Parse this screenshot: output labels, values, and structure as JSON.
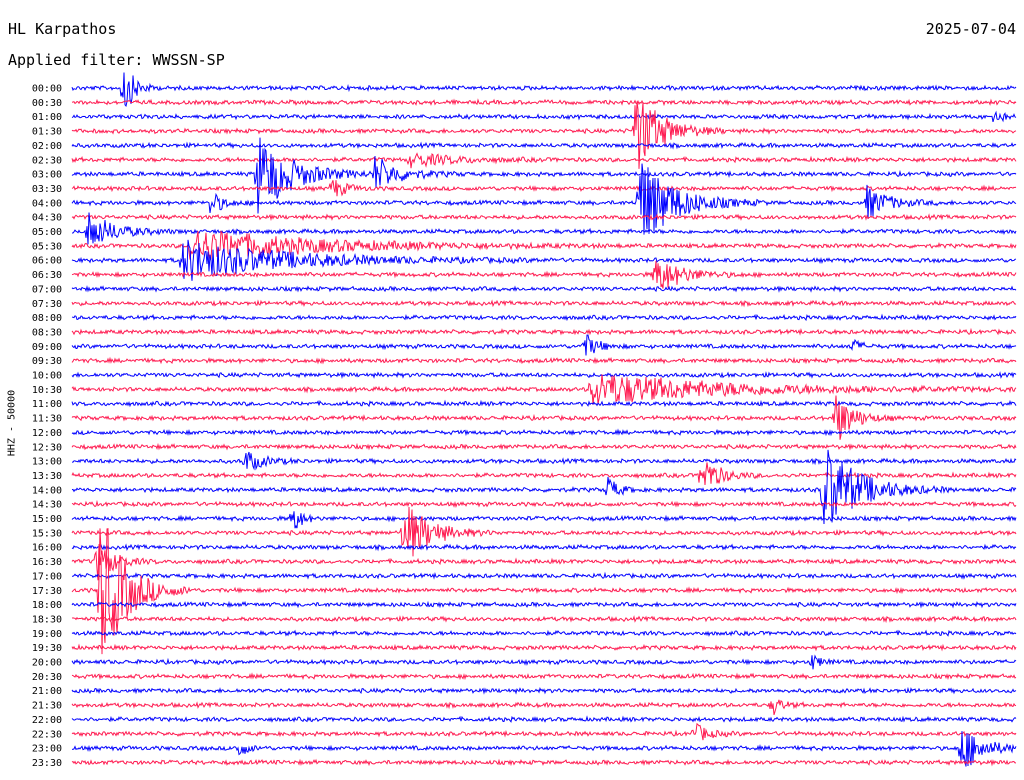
{
  "header": {
    "station": "HL Karpathos",
    "filter_label": "Applied filter: WWSSN-SP",
    "date": "2025-07-04"
  },
  "colors": {
    "odd_line": "#0000ff",
    "even_line": "#ff1a50"
  },
  "chart_data": {
    "type": "line",
    "title": "HL Karpathos",
    "ylabel": "HHZ - 50000",
    "row_labels": [
      "00:00",
      "00:30",
      "01:00",
      "01:30",
      "02:00",
      "02:30",
      "03:00",
      "03:30",
      "04:00",
      "04:30",
      "05:00",
      "05:30",
      "06:00",
      "06:30",
      "07:00",
      "07:30",
      "08:00",
      "08:30",
      "09:00",
      "09:30",
      "10:00",
      "10:30",
      "11:00",
      "11:30",
      "12:00",
      "12:30",
      "13:00",
      "13:30",
      "14:00",
      "14:30",
      "15:00",
      "15:30",
      "16:00",
      "16:30",
      "17:00",
      "17:30",
      "18:00",
      "18:30",
      "19:00",
      "19:30",
      "20:00",
      "20:30",
      "21:00",
      "21:30",
      "22:00",
      "22:30",
      "23:00",
      "23:30"
    ],
    "row_colors": [
      "blue",
      "red"
    ],
    "events": [
      {
        "row": 0,
        "minute": 6.5,
        "amp": 2.2,
        "dur": 1.2
      },
      {
        "row": 6,
        "minute": 23.5,
        "amp": 3.0,
        "dur": 4
      },
      {
        "row": 6,
        "minute": 38.5,
        "amp": 1.2,
        "dur": 3
      },
      {
        "row": 5,
        "minute": 43,
        "amp": 0.5,
        "dur": 5
      },
      {
        "row": 7,
        "minute": 33,
        "amp": 0.8,
        "dur": 1.5
      },
      {
        "row": 8,
        "minute": 17.5,
        "amp": 0.9,
        "dur": 1.5
      },
      {
        "row": 8,
        "minute": 72,
        "amp": 3.5,
        "dur": 4
      },
      {
        "row": 3,
        "minute": 71.5,
        "amp": 3.2,
        "dur": 3
      },
      {
        "row": 8,
        "minute": 101,
        "amp": 1.2,
        "dur": 2.5
      },
      {
        "row": 10,
        "minute": 2,
        "amp": 1.4,
        "dur": 3
      },
      {
        "row": 11,
        "minute": 15,
        "amp": 1.2,
        "dur": 14
      },
      {
        "row": 12,
        "minute": 14,
        "amp": 1.5,
        "dur": 12
      },
      {
        "row": 13,
        "minute": 74,
        "amp": 1.5,
        "dur": 3
      },
      {
        "row": 18,
        "minute": 65,
        "amp": 1.0,
        "dur": 1.5
      },
      {
        "row": 18,
        "minute": 99,
        "amp": 0.6,
        "dur": 1
      },
      {
        "row": 21,
        "minute": 66,
        "amp": 1.2,
        "dur": 15
      },
      {
        "row": 23,
        "minute": 97,
        "amp": 2.0,
        "dur": 2
      },
      {
        "row": 26,
        "minute": 22,
        "amp": 0.8,
        "dur": 2
      },
      {
        "row": 27,
        "minute": 80,
        "amp": 1.5,
        "dur": 2
      },
      {
        "row": 28,
        "minute": 95.5,
        "amp": 3.5,
        "dur": 4
      },
      {
        "row": 28,
        "minute": 68,
        "amp": 1.0,
        "dur": 1.2
      },
      {
        "row": 30,
        "minute": 28,
        "amp": 1.2,
        "dur": 1
      },
      {
        "row": 31,
        "minute": 42,
        "amp": 2.5,
        "dur": 3
      },
      {
        "row": 33,
        "minute": 3,
        "amp": 1.5,
        "dur": 2
      },
      {
        "row": 35,
        "minute": 3.5,
        "amp": 6.0,
        "dur": 3
      },
      {
        "row": 40,
        "minute": 94,
        "amp": 0.6,
        "dur": 1
      },
      {
        "row": 43,
        "minute": 89,
        "amp": 0.8,
        "dur": 1
      },
      {
        "row": 45,
        "minute": 79,
        "amp": 0.8,
        "dur": 1.5
      },
      {
        "row": 46,
        "minute": 21,
        "amp": 0.8,
        "dur": 1
      },
      {
        "row": 46,
        "minute": 113,
        "amp": 1.8,
        "dur": 2.5
      },
      {
        "row": 2,
        "minute": 117,
        "amp": 0.6,
        "dur": 1
      }
    ]
  }
}
